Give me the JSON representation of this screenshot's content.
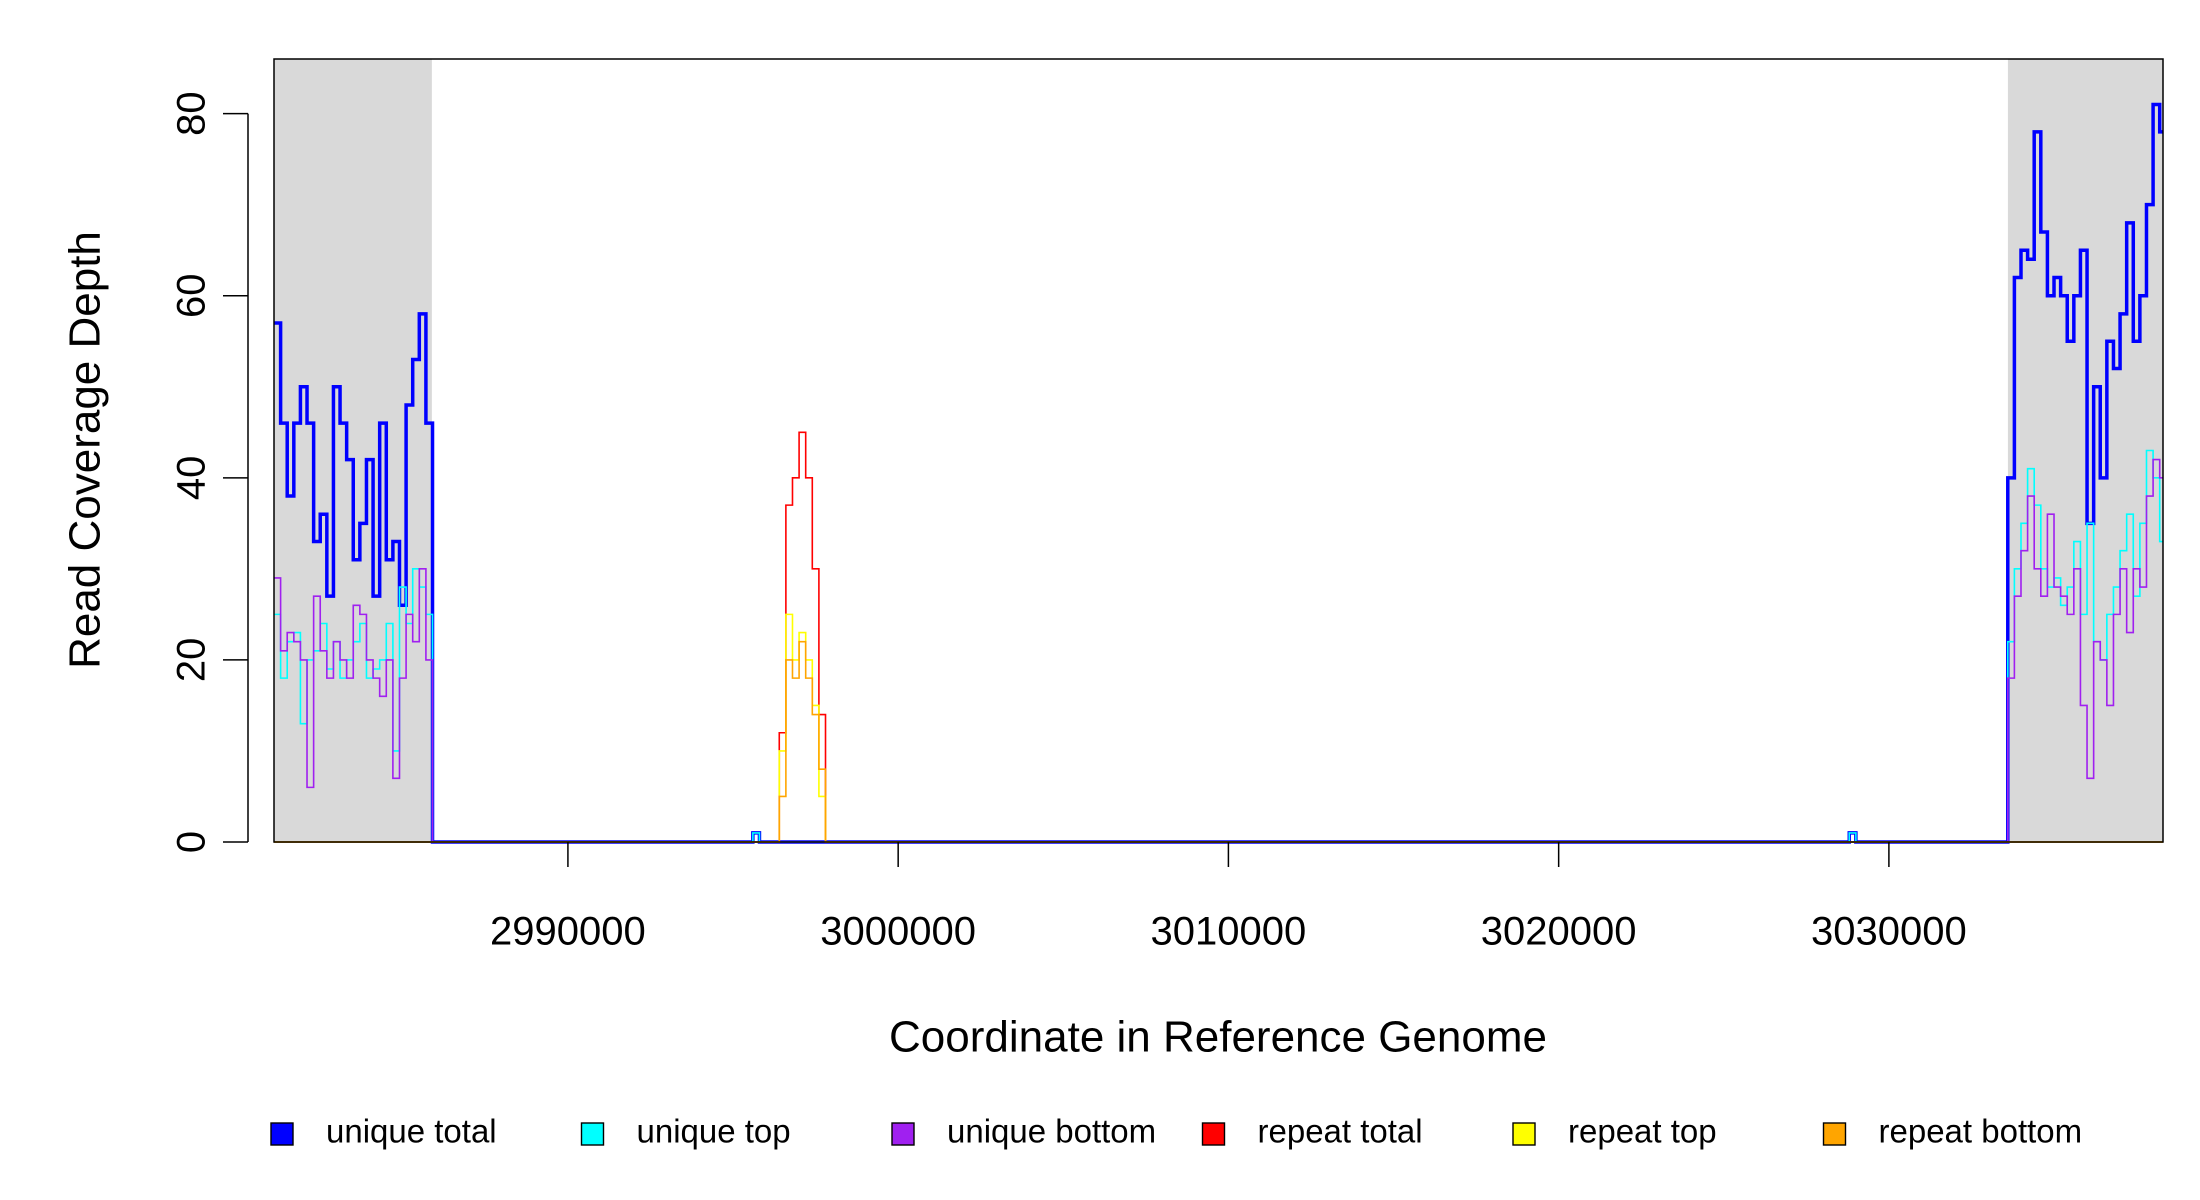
{
  "chart_data": {
    "type": "step",
    "xlabel": "Coordinate in Reference Genome",
    "ylabel": "Read Coverage Depth",
    "xlim": [
      2981100,
      3038300
    ],
    "ylim": [
      0,
      86
    ],
    "xticks": [
      2990000,
      3000000,
      3010000,
      3020000,
      3030000
    ],
    "yticks": [
      0,
      20,
      40,
      60,
      80
    ],
    "shaded_regions": [
      [
        2981100,
        2985880
      ],
      [
        3033604,
        3038300
      ]
    ],
    "shade_color": "#d9d9d9",
    "x": [
      2981100,
      2981300,
      2981500,
      2981700,
      2981900,
      2982100,
      2982300,
      2982500,
      2982700,
      2982900,
      2983100,
      2983300,
      2983500,
      2983700,
      2983900,
      2984100,
      2984300,
      2984500,
      2984700,
      2984900,
      2985100,
      2985300,
      2985500,
      2985700,
      2985900,
      2995600,
      2995800,
      2996400,
      2996600,
      2996800,
      2997000,
      2997200,
      2997400,
      2997600,
      2997800,
      3028800,
      3029000,
      3033600,
      3033800,
      3034000,
      3034200,
      3034400,
      3034600,
      3034800,
      3035000,
      3035200,
      3035400,
      3035600,
      3035800,
      3036000,
      3036200,
      3036400,
      3036600,
      3036800,
      3037000,
      3037200,
      3037400,
      3037600,
      3037800,
      3038000,
      3038200
    ],
    "series": [
      {
        "name": "unique total",
        "color": "#0000ff",
        "values": [
          57,
          46,
          38,
          46,
          50,
          46,
          33,
          36,
          27,
          50,
          46,
          42,
          31,
          35,
          42,
          27,
          46,
          31,
          33,
          26,
          48,
          53,
          58,
          46,
          0,
          1,
          0,
          0,
          0,
          0,
          0,
          0,
          0,
          0,
          0,
          1,
          0,
          40,
          62,
          65,
          64,
          78,
          67,
          60,
          62,
          60,
          55,
          60,
          65,
          35,
          50,
          40,
          55,
          52,
          58,
          68,
          55,
          60,
          70,
          81,
          78
        ]
      },
      {
        "name": "unique top",
        "color": "#00ffff",
        "values": [
          25,
          18,
          22,
          23,
          13,
          20,
          21,
          24,
          19,
          22,
          18,
          20,
          22,
          24,
          18,
          19,
          20,
          24,
          10,
          28,
          24,
          30,
          28,
          25,
          0,
          1,
          0,
          0,
          0,
          0,
          0,
          0,
          0,
          0,
          0,
          1,
          0,
          22,
          30,
          35,
          41,
          37,
          30,
          28,
          29,
          26,
          28,
          33,
          25,
          35,
          22,
          20,
          25,
          28,
          32,
          36,
          27,
          35,
          43,
          40,
          33
        ]
      },
      {
        "name": "unique bottom",
        "color": "#a020f0",
        "values": [
          29,
          21,
          23,
          22,
          20,
          6,
          27,
          21,
          18,
          22,
          20,
          18,
          26,
          25,
          20,
          18,
          16,
          20,
          7,
          18,
          25,
          22,
          30,
          20,
          0,
          0,
          0,
          0,
          0,
          0,
          0,
          0,
          0,
          0,
          0,
          0,
          0,
          18,
          27,
          32,
          38,
          30,
          27,
          36,
          28,
          27,
          25,
          30,
          15,
          7,
          22,
          20,
          15,
          25,
          30,
          23,
          30,
          28,
          38,
          42,
          40
        ]
      },
      {
        "name": "repeat total",
        "color": "#ff0000",
        "values": [
          0,
          0,
          0,
          0,
          0,
          0,
          0,
          0,
          0,
          0,
          0,
          0,
          0,
          0,
          0,
          0,
          0,
          0,
          0,
          0,
          0,
          0,
          0,
          0,
          0,
          0,
          0,
          12,
          37,
          40,
          45,
          40,
          30,
          14,
          0,
          0,
          0,
          0,
          0,
          0,
          0,
          0,
          0,
          0,
          0,
          0,
          0,
          0,
          0,
          0,
          0,
          0,
          0,
          0,
          0,
          0,
          0,
          0,
          0,
          0,
          0
        ]
      },
      {
        "name": "repeat top",
        "color": "#ffff00",
        "values": [
          0,
          0,
          0,
          0,
          0,
          0,
          0,
          0,
          0,
          0,
          0,
          0,
          0,
          0,
          0,
          0,
          0,
          0,
          0,
          0,
          0,
          0,
          0,
          0,
          0,
          0,
          0,
          10,
          25,
          20,
          23,
          20,
          15,
          5,
          0,
          0,
          0,
          0,
          0,
          0,
          0,
          0,
          0,
          0,
          0,
          0,
          0,
          0,
          0,
          0,
          0,
          0,
          0,
          0,
          0,
          0,
          0,
          0,
          0,
          0,
          0
        ]
      },
      {
        "name": "repeat bottom",
        "color": "#ffa500",
        "values": [
          0,
          0,
          0,
          0,
          0,
          0,
          0,
          0,
          0,
          0,
          0,
          0,
          0,
          0,
          0,
          0,
          0,
          0,
          0,
          0,
          0,
          0,
          0,
          0,
          0,
          0,
          0,
          5,
          20,
          18,
          22,
          18,
          14,
          8,
          0,
          0,
          0,
          0,
          0,
          0,
          0,
          0,
          0,
          0,
          0,
          0,
          0,
          0,
          0,
          0,
          0,
          0,
          0,
          0,
          0,
          0,
          0,
          0,
          0,
          0,
          0
        ]
      }
    ]
  }
}
